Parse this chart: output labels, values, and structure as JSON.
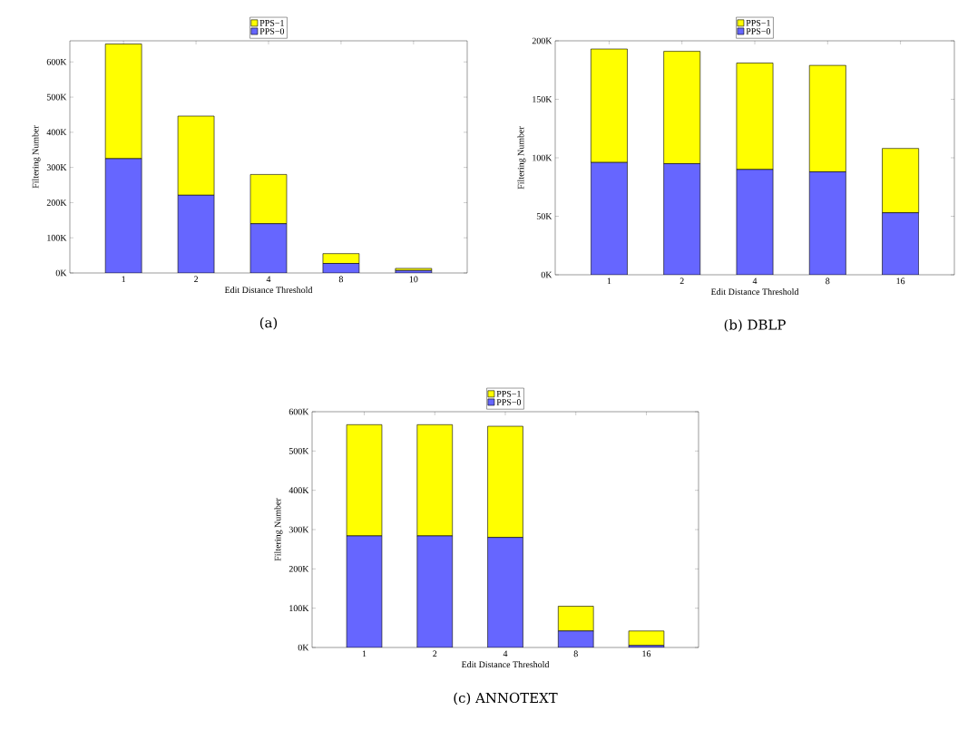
{
  "chart_data": [
    {
      "type": "bar",
      "stacked": true,
      "title": "(a)",
      "xlabel": "Edit Distance Threshold",
      "ylabel": "Filtering Number",
      "categories": [
        "1",
        "2",
        "4",
        "8",
        "10"
      ],
      "series": [
        {
          "name": "PPS−0",
          "color": "#6666ff",
          "values": [
            325000,
            221000,
            140000,
            27000,
            7000
          ]
        },
        {
          "name": "PPS−1",
          "color": "#ffff00",
          "values": [
            326000,
            225000,
            140000,
            28000,
            6000
          ]
        }
      ],
      "ylim": [
        0,
        660000
      ],
      "yticks": [
        {
          "value": 0,
          "label": "0K"
        },
        {
          "value": 100000,
          "label": "100K"
        },
        {
          "value": 200000,
          "label": "200K"
        },
        {
          "value": 300000,
          "label": "300K"
        },
        {
          "value": 400000,
          "label": "400K"
        },
        {
          "value": 500000,
          "label": "500K"
        },
        {
          "value": 600000,
          "label": "600K"
        }
      ],
      "legend": "top"
    },
    {
      "type": "bar",
      "stacked": true,
      "title": "(b) DBLP",
      "xlabel": "Edit Distance Threshold",
      "ylabel": "Filtering Number",
      "categories": [
        "1",
        "2",
        "4",
        "8",
        "16"
      ],
      "series": [
        {
          "name": "PPS−0",
          "color": "#6666ff",
          "values": [
            96000,
            95000,
            90000,
            88000,
            53000
          ]
        },
        {
          "name": "PPS−1",
          "color": "#ffff00",
          "values": [
            97000,
            96000,
            91000,
            91000,
            55000
          ]
        }
      ],
      "ylim": [
        0,
        200000
      ],
      "yticks": [
        {
          "value": 0,
          "label": "0K"
        },
        {
          "value": 50000,
          "label": "50K"
        },
        {
          "value": 100000,
          "label": "100K"
        },
        {
          "value": 150000,
          "label": "150K"
        },
        {
          "value": 200000,
          "label": "200K"
        }
      ],
      "legend": "top"
    },
    {
      "type": "bar",
      "stacked": true,
      "title": "(c) ANNOTEXT",
      "xlabel": "Edit Distance Threshold",
      "ylabel": "Filtering Number",
      "categories": [
        "1",
        "2",
        "4",
        "8",
        "16"
      ],
      "series": [
        {
          "name": "PPS−0",
          "color": "#6666ff",
          "values": [
            284000,
            284000,
            280000,
            42000,
            5000
          ]
        },
        {
          "name": "PPS−1",
          "color": "#ffff00",
          "values": [
            283000,
            283000,
            283000,
            63000,
            37000
          ]
        }
      ],
      "ylim": [
        0,
        600000
      ],
      "yticks": [
        {
          "value": 0,
          "label": "0K"
        },
        {
          "value": 100000,
          "label": "100K"
        },
        {
          "value": 200000,
          "label": "200K"
        },
        {
          "value": 300000,
          "label": "300K"
        },
        {
          "value": 400000,
          "label": "400K"
        },
        {
          "value": 500000,
          "label": "500K"
        },
        {
          "value": 600000,
          "label": "600K"
        }
      ],
      "legend": "top"
    }
  ]
}
